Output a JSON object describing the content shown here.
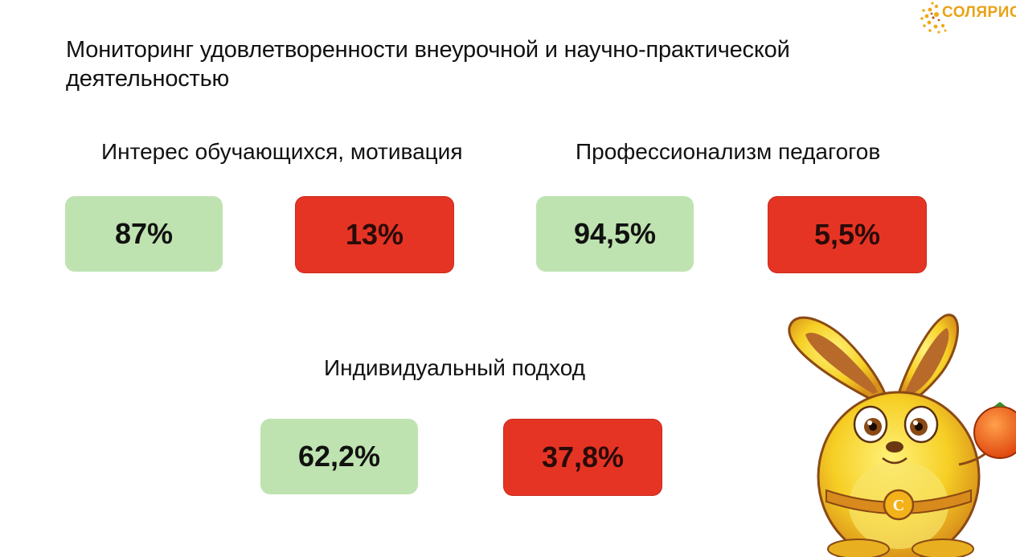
{
  "title": "Мониторинг удовлетворенности внеурочной и научно-практической деятельностью",
  "logo": {
    "text": "СОЛЯРИС",
    "color": "#e8a317"
  },
  "colors": {
    "positive": "#bfe3b0",
    "negative": "#e63424"
  },
  "sections": [
    {
      "label": "Интерес обучающихся, мотивация",
      "positive": "87%",
      "negative": "13%"
    },
    {
      "label": "Профессионализм педагогов",
      "positive": "94,5%",
      "negative": "5,5%"
    },
    {
      "label": "Индивидуальный подход",
      "positive": "62,2%",
      "negative": "37,8%"
    }
  ]
}
